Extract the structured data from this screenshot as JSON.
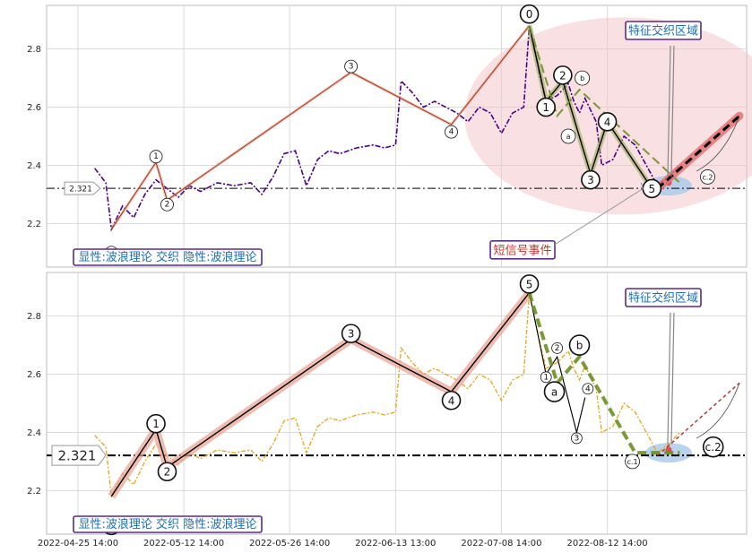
{
  "chart_data": [
    {
      "type": "line",
      "panel": "top",
      "ylim": [
        2.05,
        2.95
      ],
      "yticks": [
        "2.2",
        "2.4",
        "2.6",
        "2.8"
      ],
      "price_label": "2.321",
      "legend_text": "显性:波浪理论 交织 隐性:波浪理论",
      "zone_label": "特征交织区域",
      "event_label": "短信号事件",
      "price_series_color": "#4b0082",
      "price_series": [
        [
          0.03,
          2.39
        ],
        [
          0.05,
          2.34
        ],
        [
          0.06,
          2.18
        ],
        [
          0.08,
          2.26
        ],
        [
          0.1,
          2.22
        ],
        [
          0.12,
          2.3
        ],
        [
          0.14,
          2.35
        ],
        [
          0.16,
          2.32
        ],
        [
          0.18,
          2.29
        ],
        [
          0.2,
          2.33
        ],
        [
          0.22,
          2.31
        ],
        [
          0.25,
          2.34
        ],
        [
          0.28,
          2.33
        ],
        [
          0.31,
          2.34
        ],
        [
          0.33,
          2.3
        ],
        [
          0.35,
          2.36
        ],
        [
          0.37,
          2.44
        ],
        [
          0.39,
          2.45
        ],
        [
          0.41,
          2.33
        ],
        [
          0.43,
          2.42
        ],
        [
          0.45,
          2.45
        ],
        [
          0.47,
          2.44
        ],
        [
          0.5,
          2.46
        ],
        [
          0.53,
          2.47
        ],
        [
          0.55,
          2.46
        ],
        [
          0.57,
          2.47
        ],
        [
          0.58,
          2.69
        ],
        [
          0.6,
          2.65
        ],
        [
          0.62,
          2.6
        ],
        [
          0.64,
          2.62
        ],
        [
          0.66,
          2.6
        ],
        [
          0.68,
          2.58
        ],
        [
          0.7,
          2.55
        ],
        [
          0.72,
          2.6
        ],
        [
          0.74,
          2.58
        ],
        [
          0.76,
          2.51
        ],
        [
          0.78,
          2.58
        ],
        [
          0.8,
          2.6
        ],
        [
          0.81,
          2.88
        ],
        [
          0.83,
          2.7
        ],
        [
          0.84,
          2.62
        ],
        [
          0.86,
          2.64
        ],
        [
          0.88,
          2.68
        ],
        [
          0.89,
          2.62
        ],
        [
          0.9,
          2.58
        ],
        [
          0.91,
          2.63
        ],
        [
          0.93,
          2.55
        ],
        [
          0.94,
          2.4
        ],
        [
          0.96,
          2.42
        ],
        [
          0.98,
          2.5
        ],
        [
          1.0,
          2.47
        ],
        [
          1.02,
          2.4
        ],
        [
          1.04,
          2.33
        ],
        [
          1.06,
          2.36
        ],
        [
          1.08,
          2.4
        ]
      ],
      "main_waves": [
        {
          "label": "0",
          "x": 0.06,
          "y": 2.18,
          "lx": 0.06,
          "ly": 2.1
        },
        {
          "label": "1",
          "x": 0.14,
          "y": 2.41,
          "lx": 0.14,
          "ly": 2.43
        },
        {
          "label": "2",
          "x": 0.16,
          "y": 2.28,
          "lx": 0.16,
          "ly": 2.265
        },
        {
          "label": "3",
          "x": 0.49,
          "y": 2.72,
          "lx": 0.49,
          "ly": 2.74
        },
        {
          "label": "4",
          "x": 0.67,
          "y": 2.54,
          "lx": 0.67,
          "ly": 2.515
        },
        {
          "label": "0",
          "x": 0.81,
          "y": 2.88,
          "lx": 0.81,
          "ly": 2.92
        }
      ],
      "sub_waves": [
        {
          "label": "1",
          "x": 0.84,
          "y": 2.62,
          "lx": 0.84,
          "ly": 2.6
        },
        {
          "label": "2",
          "x": 0.87,
          "y": 2.69,
          "lx": 0.87,
          "ly": 2.71
        },
        {
          "label": "3",
          "x": 0.92,
          "y": 2.37,
          "lx": 0.92,
          "ly": 2.35
        },
        {
          "label": "4",
          "x": 0.95,
          "y": 2.55,
          "lx": 0.95,
          "ly": 2.55
        },
        {
          "label": "5",
          "x": 1.03,
          "y": 2.32,
          "lx": 1.03,
          "ly": 2.32
        }
      ],
      "abc_waves": [
        {
          "label": "a",
          "x": 0.86,
          "y": 2.57,
          "lx": 0.88,
          "ly": 2.5
        },
        {
          "label": "b",
          "x": 0.9,
          "y": 2.66,
          "lx": 0.905,
          "ly": 2.7
        },
        {
          "label": "c.2",
          "x": 1.08,
          "y": 2.34,
          "lx": 1.13,
          "ly": 2.36
        }
      ],
      "ref_price": 2.321
    },
    {
      "type": "line",
      "panel": "bottom",
      "ylim": [
        2.05,
        2.95
      ],
      "yticks": [
        "2.2",
        "2.4",
        "2.6",
        "2.8"
      ],
      "price_label": "2.321",
      "legend_text": "显性:波浪理论 交织 隐性:波浪理论",
      "zone_label": "特征交织区域",
      "price_series_color": "#e8a317",
      "price_series": [
        [
          0.03,
          2.39
        ],
        [
          0.05,
          2.35
        ],
        [
          0.06,
          2.18
        ],
        [
          0.08,
          2.26
        ],
        [
          0.1,
          2.22
        ],
        [
          0.12,
          2.3
        ],
        [
          0.14,
          2.36
        ],
        [
          0.16,
          2.32
        ],
        [
          0.18,
          2.29
        ],
        [
          0.2,
          2.33
        ],
        [
          0.22,
          2.31
        ],
        [
          0.25,
          2.34
        ],
        [
          0.28,
          2.33
        ],
        [
          0.31,
          2.34
        ],
        [
          0.33,
          2.3
        ],
        [
          0.35,
          2.36
        ],
        [
          0.37,
          2.44
        ],
        [
          0.39,
          2.45
        ],
        [
          0.41,
          2.33
        ],
        [
          0.43,
          2.42
        ],
        [
          0.45,
          2.45
        ],
        [
          0.47,
          2.44
        ],
        [
          0.5,
          2.46
        ],
        [
          0.53,
          2.47
        ],
        [
          0.55,
          2.46
        ],
        [
          0.57,
          2.47
        ],
        [
          0.58,
          2.69
        ],
        [
          0.6,
          2.64
        ],
        [
          0.62,
          2.6
        ],
        [
          0.64,
          2.62
        ],
        [
          0.66,
          2.6
        ],
        [
          0.68,
          2.58
        ],
        [
          0.7,
          2.55
        ],
        [
          0.72,
          2.6
        ],
        [
          0.74,
          2.58
        ],
        [
          0.76,
          2.51
        ],
        [
          0.78,
          2.58
        ],
        [
          0.8,
          2.6
        ],
        [
          0.81,
          2.88
        ],
        [
          0.83,
          2.7
        ],
        [
          0.84,
          2.62
        ],
        [
          0.86,
          2.64
        ],
        [
          0.88,
          2.68
        ],
        [
          0.89,
          2.62
        ],
        [
          0.9,
          2.58
        ],
        [
          0.91,
          2.63
        ],
        [
          0.93,
          2.55
        ],
        [
          0.94,
          2.4
        ],
        [
          0.96,
          2.42
        ],
        [
          0.98,
          2.5
        ],
        [
          1.0,
          2.47
        ],
        [
          1.02,
          2.4
        ],
        [
          1.04,
          2.33
        ],
        [
          1.06,
          2.36
        ],
        [
          1.08,
          2.4
        ]
      ],
      "main_waves": [
        {
          "label": "0",
          "x": 0.06,
          "y": 2.18,
          "lx": 0.06,
          "ly": 2.08
        },
        {
          "label": "1",
          "x": 0.14,
          "y": 2.41,
          "lx": 0.14,
          "ly": 2.43
        },
        {
          "label": "2",
          "x": 0.16,
          "y": 2.28,
          "lx": 0.16,
          "ly": 2.265
        },
        {
          "label": "3",
          "x": 0.49,
          "y": 2.72,
          "lx": 0.49,
          "ly": 2.74
        },
        {
          "label": "4",
          "x": 0.67,
          "y": 2.54,
          "lx": 0.67,
          "ly": 2.51
        },
        {
          "label": "5",
          "x": 0.81,
          "y": 2.88,
          "lx": 0.81,
          "ly": 2.91
        }
      ],
      "sub_waves": [
        {
          "label": "1",
          "x": 0.84,
          "y": 2.6,
          "lx": 0.84,
          "ly": 2.59
        },
        {
          "label": "2",
          "x": 0.86,
          "y": 2.66,
          "lx": 0.86,
          "ly": 2.69
        },
        {
          "label": "3",
          "x": 0.895,
          "y": 2.4,
          "lx": 0.895,
          "ly": 2.38
        },
        {
          "label": "4",
          "x": 0.91,
          "y": 2.52,
          "lx": 0.915,
          "ly": 2.55
        }
      ],
      "abc_waves": [
        {
          "label": "a",
          "x": 0.86,
          "y": 2.57,
          "lx": 0.855,
          "ly": 2.54
        },
        {
          "label": "b",
          "x": 0.9,
          "y": 2.66,
          "lx": 0.9,
          "ly": 2.7
        },
        {
          "label": "c.1",
          "x": 1.0,
          "y": 2.33,
          "lx": 0.995,
          "ly": 2.3
        },
        {
          "label": "c.2",
          "x": 1.08,
          "y": 2.33,
          "lx": 1.14,
          "ly": 2.35
        }
      ],
      "ref_price": 2.321
    }
  ],
  "x_axis_ticks": [
    "2022-04-25 14:00",
    "2022-05-12 14:00",
    "2022-05-26 14:00",
    "2022-06-13 13:00",
    "2022-07-08 14:00",
    "2022-08-12 14:00"
  ],
  "colors": {
    "grid": "#d9d9d9",
    "wave_red": "#e8a090",
    "wave_green": "#6b8e23",
    "zone_fill": "#f4c6cc",
    "target_red": "#e57373"
  }
}
